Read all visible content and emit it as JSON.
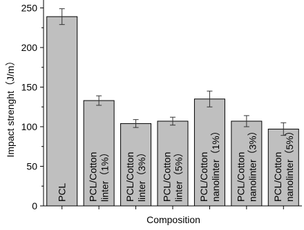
{
  "chart_data": {
    "type": "bar",
    "title": "",
    "xlabel": "Composition",
    "ylabel": "Impact strenght（J/m）",
    "ylim": [
      0,
      260
    ],
    "yticks": [
      0,
      50,
      100,
      150,
      200,
      250
    ],
    "categories": [
      [
        "PCL"
      ],
      [
        "PCL/Cotton",
        "linter（1%）"
      ],
      [
        "PCL/Cotton",
        "linter（3%）"
      ],
      [
        "PCL/Cotton",
        "linter（5%）"
      ],
      [
        "PCL/Cotton",
        "nanolinter（1%）"
      ],
      [
        "PCL/Cotton",
        "nanolinter（3%）"
      ],
      [
        "PCL/Cotton",
        "nanolinter（5%）"
      ]
    ],
    "values": [
      239,
      133,
      104,
      107,
      135,
      107,
      97
    ],
    "errors": [
      10,
      6,
      5,
      5,
      10,
      7,
      8
    ],
    "bar_color": "#bfbfbf",
    "grid": false,
    "legend": "none"
  }
}
